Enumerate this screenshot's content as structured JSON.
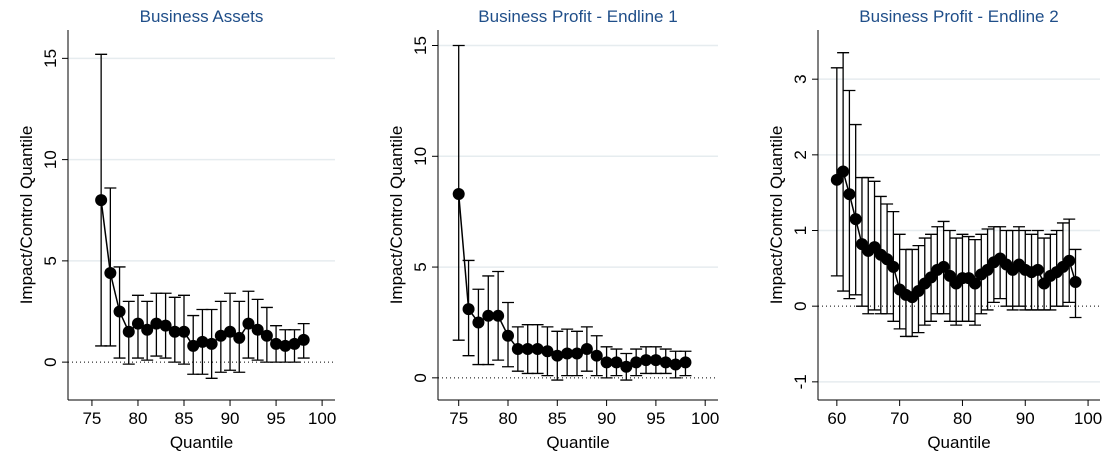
{
  "chart_data": [
    {
      "type": "errorbar",
      "title": "Business Assets",
      "x_label": "Quantile",
      "y_label": "Impact/Control Quantile",
      "x": [
        76,
        77,
        78,
        79,
        80,
        81,
        82,
        83,
        84,
        85,
        86,
        87,
        88,
        89,
        90,
        91,
        92,
        93,
        94,
        95,
        96,
        97,
        98
      ],
      "values": [
        8.0,
        4.4,
        2.5,
        1.5,
        1.9,
        1.6,
        1.9,
        1.8,
        1.5,
        1.5,
        0.8,
        1.0,
        0.9,
        1.3,
        1.5,
        1.2,
        1.9,
        1.6,
        1.3,
        0.9,
        0.8,
        0.9,
        1.1
      ],
      "lower": [
        0.8,
        0.8,
        0.2,
        -0.1,
        0.2,
        0.1,
        0.3,
        0.2,
        0.0,
        -0.1,
        -0.6,
        -0.6,
        -0.8,
        -0.5,
        -0.4,
        -0.5,
        0.2,
        0.1,
        0.0,
        0.0,
        0.0,
        0.0,
        0.2
      ],
      "upper": [
        15.2,
        8.6,
        4.7,
        3.0,
        3.3,
        3.0,
        3.4,
        3.4,
        3.2,
        3.3,
        2.3,
        2.6,
        2.6,
        3.0,
        3.4,
        3.0,
        3.5,
        3.1,
        2.7,
        1.8,
        1.6,
        1.6,
        1.9
      ],
      "color": "#000000",
      "xlim": [
        72.4,
        101.4
      ],
      "ylim": [
        -1.87,
        16.4
      ],
      "xticks": [
        75,
        80,
        85,
        90,
        95,
        100
      ],
      "yticks": [
        0,
        5,
        10,
        15
      ],
      "grid": true,
      "refline": 0
    },
    {
      "type": "errorbar",
      "title": "Business Profit - Endline 1",
      "x_label": "Quantile",
      "y_label": "Impact/Control Quantile",
      "x": [
        75,
        76,
        77,
        78,
        79,
        80,
        81,
        82,
        83,
        84,
        85,
        86,
        87,
        88,
        89,
        90,
        91,
        92,
        93,
        94,
        95,
        96,
        97,
        98
      ],
      "values": [
        8.3,
        3.1,
        2.5,
        2.8,
        2.8,
        1.9,
        1.3,
        1.3,
        1.3,
        1.2,
        1.0,
        1.1,
        1.1,
        1.3,
        1.0,
        0.7,
        0.7,
        0.5,
        0.7,
        0.8,
        0.8,
        0.7,
        0.6,
        0.7
      ],
      "lower": [
        1.7,
        1.0,
        0.6,
        0.6,
        0.8,
        0.5,
        0.3,
        0.2,
        0.2,
        0.1,
        -0.1,
        0.1,
        0.1,
        0.3,
        0.1,
        0.0,
        0.1,
        -0.1,
        0.1,
        0.2,
        0.2,
        0.2,
        0.0,
        0.1
      ],
      "upper": [
        15.0,
        5.3,
        4.0,
        4.6,
        4.8,
        3.4,
        2.3,
        2.4,
        2.4,
        2.3,
        2.1,
        2.2,
        2.1,
        2.3,
        1.9,
        1.4,
        1.3,
        1.1,
        1.3,
        1.4,
        1.4,
        1.3,
        1.2,
        1.2
      ],
      "color": "#000000",
      "xlim": [
        72.9,
        101.3
      ],
      "ylim": [
        -1.0,
        15.7
      ],
      "xticks": [
        75,
        80,
        85,
        90,
        95,
        100
      ],
      "yticks": [
        0,
        5,
        10,
        15
      ],
      "grid": true,
      "refline": 0
    },
    {
      "type": "errorbar",
      "title": "Business Profit - Endline 2",
      "x_label": "Quantile",
      "y_label": "Impact/Control Quantile",
      "x": [
        60,
        61,
        62,
        63,
        64,
        65,
        66,
        67,
        68,
        69,
        70,
        71,
        72,
        73,
        74,
        75,
        76,
        77,
        78,
        79,
        80,
        81,
        82,
        83,
        84,
        85,
        86,
        87,
        88,
        89,
        90,
        91,
        92,
        93,
        94,
        95,
        96,
        97,
        98
      ],
      "values": [
        1.67,
        1.78,
        1.48,
        1.15,
        0.82,
        0.73,
        0.78,
        0.68,
        0.62,
        0.52,
        0.22,
        0.15,
        0.12,
        0.2,
        0.3,
        0.38,
        0.48,
        0.52,
        0.4,
        0.3,
        0.37,
        0.37,
        0.3,
        0.42,
        0.48,
        0.58,
        0.63,
        0.55,
        0.48,
        0.55,
        0.48,
        0.45,
        0.48,
        0.3,
        0.4,
        0.45,
        0.52,
        0.6,
        0.32
      ],
      "lower": [
        0.4,
        0.2,
        0.1,
        0.15,
        0.0,
        -0.1,
        -0.05,
        -0.1,
        -0.1,
        -0.2,
        -0.3,
        -0.4,
        -0.4,
        -0.35,
        -0.25,
        -0.2,
        -0.1,
        -0.1,
        -0.2,
        -0.25,
        -0.2,
        -0.2,
        -0.25,
        -0.1,
        -0.05,
        0.05,
        0.1,
        0.0,
        -0.05,
        0.0,
        -0.05,
        -0.05,
        -0.05,
        -0.05,
        -0.05,
        0.0,
        0.0,
        0.05,
        -0.15
      ],
      "upper": [
        3.15,
        3.35,
        2.85,
        2.4,
        1.7,
        1.7,
        1.65,
        1.45,
        1.35,
        1.25,
        0.95,
        0.75,
        0.75,
        0.8,
        0.9,
        0.95,
        1.05,
        1.12,
        1.0,
        0.9,
        0.95,
        0.92,
        0.88,
        0.95,
        1.02,
        1.05,
        1.05,
        1.0,
        1.0,
        1.05,
        1.0,
        0.95,
        1.0,
        0.9,
        0.95,
        1.0,
        1.1,
        1.15,
        0.75
      ],
      "color": "#000000",
      "xlim": [
        57,
        101.9
      ],
      "ylim": [
        -1.24,
        3.65
      ],
      "xticks": [
        60,
        70,
        80,
        90,
        100
      ],
      "yticks": [
        -1,
        0,
        1,
        2,
        3
      ],
      "grid": true,
      "refline": 0
    }
  ]
}
